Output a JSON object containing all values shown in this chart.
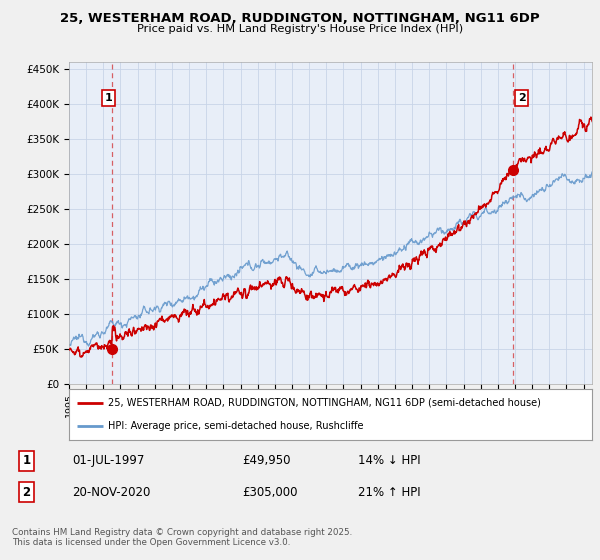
{
  "title": "25, WESTERHAM ROAD, RUDDINGTON, NOTTINGHAM, NG11 6DP",
  "subtitle": "Price paid vs. HM Land Registry's House Price Index (HPI)",
  "ylim": [
    0,
    460000
  ],
  "yticks": [
    0,
    50000,
    100000,
    150000,
    200000,
    250000,
    300000,
    350000,
    400000,
    450000
  ],
  "ytick_labels": [
    "£0",
    "£50K",
    "£100K",
    "£150K",
    "£200K",
    "£250K",
    "£300K",
    "£350K",
    "£400K",
    "£450K"
  ],
  "sale1_x": 1997.5,
  "sale1_price": 49950,
  "sale2_x": 2020.88,
  "sale2_price": 305000,
  "legend_entry1": "25, WESTERHAM ROAD, RUDDINGTON, NOTTINGHAM, NG11 6DP (semi-detached house)",
  "legend_entry2": "HPI: Average price, semi-detached house, Rushcliffe",
  "table_row1": [
    "1",
    "01-JUL-1997",
    "£49,950",
    "14% ↓ HPI"
  ],
  "table_row2": [
    "2",
    "20-NOV-2020",
    "£305,000",
    "21% ↑ HPI"
  ],
  "footer": "Contains HM Land Registry data © Crown copyright and database right 2025.\nThis data is licensed under the Open Government Licence v3.0.",
  "red_color": "#cc0000",
  "blue_color": "#6699cc",
  "bg_color": "#f0f0f0",
  "plot_bg": "#e8eef8",
  "grid_color": "#c8d4e8",
  "xmin": 1995,
  "xmax": 2025.5,
  "xticks": [
    1995,
    1996,
    1997,
    1998,
    1999,
    2000,
    2001,
    2002,
    2003,
    2004,
    2005,
    2006,
    2007,
    2008,
    2009,
    2010,
    2011,
    2012,
    2013,
    2014,
    2015,
    2016,
    2017,
    2018,
    2019,
    2020,
    2021,
    2022,
    2023,
    2024,
    2025
  ]
}
